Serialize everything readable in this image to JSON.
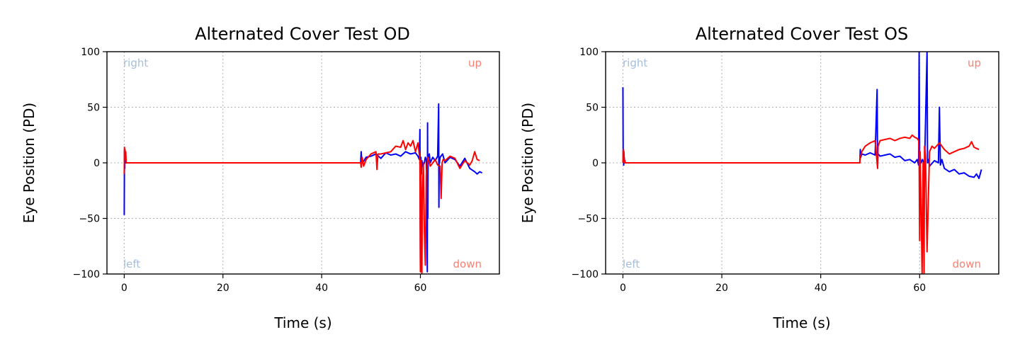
{
  "colors": {
    "corner_right_left": "#a6bddb",
    "corner_up_down": "#fa8072"
  },
  "chart_data": [
    {
      "type": "line",
      "title": "Alternated Cover Test OD",
      "xlabel": "Time (s)",
      "ylabel": "Eye Position (PD)",
      "xlim": [
        -3.5,
        76
      ],
      "ylim": [
        -100,
        100
      ],
      "xticks": [
        0,
        20,
        40,
        60
      ],
      "yticks": [
        -100,
        -50,
        0,
        50,
        100
      ],
      "xtick_labels": [
        "0",
        "20",
        "40",
        "60"
      ],
      "ytick_labels": [
        "−100",
        "−50",
        "0",
        "50",
        "100"
      ],
      "grid": true,
      "corner_labels": {
        "top_left": "right",
        "bottom_left": "left",
        "top_right": "up",
        "bottom_right": "down"
      },
      "series": [
        {
          "color": "#0000ff",
          "x": [
            0,
            0.05,
            0.1,
            0.15,
            0.2,
            0.3,
            0.5,
            10,
            20,
            30,
            40,
            47.9,
            48.0,
            48.1,
            48.3,
            49,
            50,
            51,
            52,
            53,
            54,
            55,
            56,
            57,
            58,
            59,
            59.5,
            59.8,
            59.9,
            60.0,
            60.1,
            60.2,
            60.3,
            60.5,
            60.8,
            61.0,
            61.2,
            61.4,
            61.45,
            61.5,
            61.55,
            61.6,
            61.8,
            62,
            62.5,
            63,
            63.5,
            63.7,
            63.75,
            63.8,
            63.85,
            64,
            64.5,
            65,
            66,
            67,
            68,
            69,
            70,
            71,
            71.5,
            72,
            72.5
          ],
          "y": [
            -47,
            12,
            -5,
            8,
            2,
            0,
            0,
            0,
            0,
            0,
            0,
            0,
            10,
            2,
            0,
            5,
            6,
            8,
            4,
            9,
            7,
            8,
            6,
            10,
            8,
            9,
            6,
            3,
            30,
            -95,
            5,
            -10,
            2,
            -3,
            0,
            5,
            3,
            -98,
            36,
            -50,
            4,
            5,
            8,
            0,
            5,
            2,
            6,
            53,
            -40,
            5,
            0,
            5,
            8,
            0,
            5,
            3,
            -3,
            4,
            -5,
            -8,
            -10,
            -8,
            -9
          ]
        },
        {
          "color": "#ff0000",
          "x": [
            0,
            0.05,
            0.1,
            0.15,
            0.2,
            0.3,
            0.4,
            0.5,
            10,
            20,
            30,
            40,
            47.9,
            48.0,
            48.2,
            48.5,
            49,
            50,
            51,
            51.2,
            51.4,
            52,
            53,
            54,
            55,
            56,
            56.5,
            57,
            57.5,
            58,
            58.5,
            59,
            59.5,
            59.9,
            60.0,
            60.1,
            60.2,
            60.3,
            60.4,
            60.6,
            60.8,
            61.0,
            61.2,
            61.5,
            62,
            62.5,
            63,
            63.5,
            64,
            64.2,
            64.4,
            64.6,
            65,
            66,
            67,
            68,
            69,
            70,
            70.5,
            71,
            71.5,
            72
          ],
          "y": [
            -10,
            14,
            6,
            12,
            3,
            10,
            0,
            0,
            0,
            0,
            0,
            0,
            0,
            -4,
            5,
            -3,
            3,
            8,
            10,
            -6,
            8,
            8,
            9,
            10,
            15,
            14,
            20,
            12,
            18,
            15,
            20,
            10,
            18,
            3,
            -98,
            2,
            -70,
            -100,
            -30,
            0,
            -60,
            -92,
            -10,
            5,
            -3,
            0,
            3,
            -2,
            -3,
            -32,
            0,
            3,
            2,
            6,
            4,
            -5,
            2,
            -2,
            2,
            10,
            3,
            2
          ]
        }
      ]
    },
    {
      "type": "line",
      "title": "Alternated Cover Test OS",
      "xlabel": "Time (s)",
      "ylabel": "Eye Position (PD)",
      "xlim": [
        -3.5,
        76
      ],
      "ylim": [
        -100,
        100
      ],
      "xticks": [
        0,
        20,
        40,
        60
      ],
      "yticks": [
        -100,
        -50,
        0,
        50,
        100
      ],
      "xtick_labels": [
        "0",
        "20",
        "40",
        "60"
      ],
      "ytick_labels": [
        "−100",
        "−50",
        "0",
        "50",
        "100"
      ],
      "grid": true,
      "corner_labels": {
        "top_left": "right",
        "bottom_left": "left",
        "top_right": "up",
        "bottom_right": "down"
      },
      "series": [
        {
          "color": "#0000ff",
          "x": [
            0,
            0.05,
            0.1,
            0.15,
            0.25,
            0.4,
            0.5,
            10,
            20,
            30,
            40,
            47.9,
            48.0,
            48.1,
            48.3,
            49,
            50,
            51,
            51.4,
            51.5,
            51.6,
            52,
            53,
            54,
            55,
            56,
            57,
            58,
            59,
            59.5,
            59.8,
            59.9,
            60.0,
            60.1,
            60.3,
            60.6,
            61,
            61.5,
            61.6,
            61.8,
            62,
            63,
            63.8,
            64,
            64.2,
            64.5,
            65,
            66,
            67,
            68,
            69,
            70,
            71,
            71.5,
            72,
            72.5
          ],
          "y": [
            68,
            5,
            12,
            -2,
            5,
            0,
            0,
            0,
            0,
            0,
            0,
            0,
            12,
            5,
            8,
            7,
            9,
            7,
            66,
            0,
            8,
            6,
            7,
            8,
            5,
            6,
            2,
            3,
            0,
            3,
            -2,
            100,
            -3,
            5,
            0,
            3,
            -2,
            100,
            0,
            3,
            -3,
            2,
            0,
            50,
            -2,
            3,
            -5,
            -8,
            -6,
            -10,
            -9,
            -12,
            -13,
            -10,
            -14,
            -6
          ]
        },
        {
          "color": "#ff0000",
          "x": [
            0,
            0.05,
            0.1,
            0.2,
            0.3,
            0.4,
            0.5,
            10,
            20,
            30,
            40,
            47.9,
            48.0,
            48.3,
            49,
            50,
            51,
            51.4,
            51.5,
            51.6,
            52,
            53,
            54,
            55,
            56,
            57,
            58,
            58.5,
            59,
            59.5,
            59.8,
            59.9,
            60.0,
            60.1,
            60.3,
            60.5,
            60.7,
            60.9,
            61,
            61.2,
            61.5,
            62,
            62.5,
            63,
            64,
            65,
            66,
            67,
            68,
            69,
            70,
            70.5,
            71,
            71.5,
            72
          ],
          "y": [
            0,
            12,
            3,
            10,
            0,
            2,
            0,
            0,
            0,
            0,
            0,
            0,
            5,
            10,
            15,
            18,
            20,
            0,
            -5,
            15,
            20,
            21,
            22,
            20,
            22,
            23,
            22,
            25,
            23,
            22,
            20,
            5,
            -70,
            10,
            -40,
            -100,
            0,
            -100,
            15,
            5,
            -80,
            10,
            15,
            13,
            18,
            12,
            8,
            10,
            12,
            13,
            15,
            19,
            14,
            13,
            12
          ]
        }
      ]
    }
  ]
}
